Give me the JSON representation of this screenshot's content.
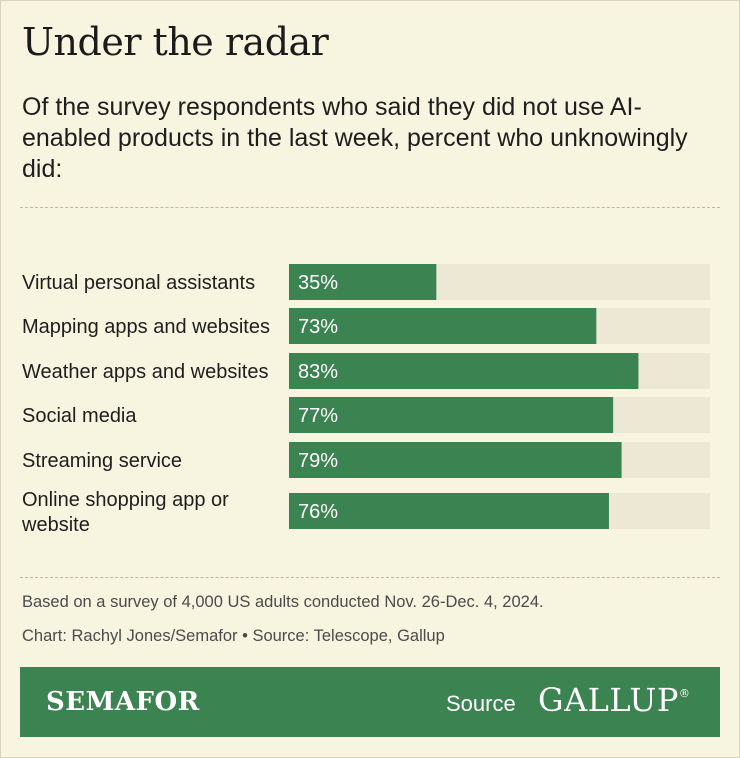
{
  "header": {
    "title": "Under the radar",
    "subtitle": "Of the survey respondents who said they did not use AI-enabled products in the last week, percent who unknowingly did:"
  },
  "chart_data": {
    "type": "bar",
    "orientation": "horizontal",
    "categories": [
      "Virtual personal assistants",
      "Mapping apps and websites",
      "Weather apps and websites",
      "Social media",
      "Streaming service",
      "Online shopping app or website"
    ],
    "values": [
      35,
      73,
      83,
      77,
      79,
      76
    ],
    "value_labels": [
      "35%",
      "73%",
      "83%",
      "77%",
      "79%",
      "76%"
    ],
    "xlim": [
      0,
      100
    ],
    "unit": "%",
    "grid": false,
    "colors": {
      "bar": "#3c8352",
      "track": "#ece8d4",
      "label": "#ffffff"
    }
  },
  "notes": {
    "methodology": "Based on a survey of 4,000 US adults conducted Nov. 26-Dec. 4, 2024.",
    "credit": "Chart: Rachyl Jones/Semafor • Source: Telescope, Gallup"
  },
  "footer": {
    "brand": "SEMAFOR",
    "source_label": "Source",
    "partner": "GALLUP",
    "partner_mark": "®",
    "background": "#3c8352"
  }
}
